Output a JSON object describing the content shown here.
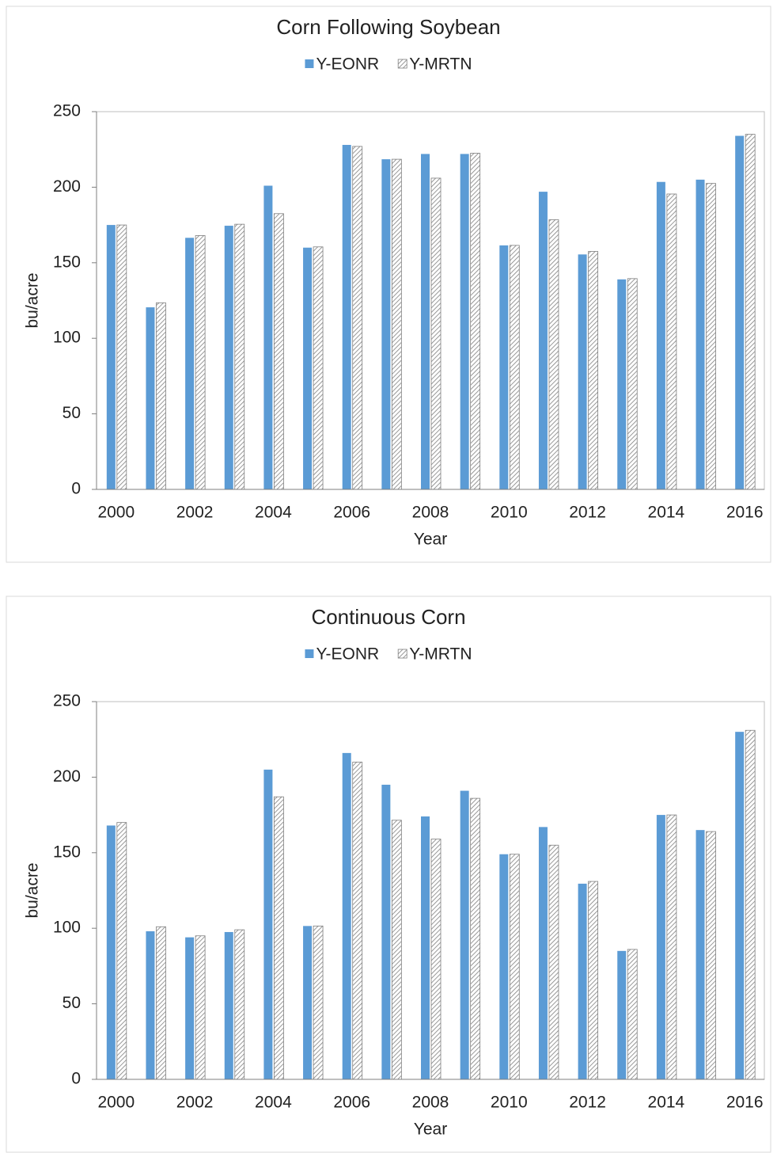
{
  "chart_data": [
    {
      "type": "bar",
      "title": "Corn Following Soybean",
      "x_label": "Year",
      "y_label": "bu/acre",
      "legend": "top",
      "categories": [
        "2000",
        null,
        "2002",
        null,
        "2004",
        null,
        "2006",
        null,
        "2008",
        null,
        "2010",
        null,
        "2012",
        null,
        "2014",
        null,
        "2016"
      ],
      "series": [
        {
          "name": "Y-EONR",
          "color": "#5b9bd5",
          "values": [
            175,
            120.5,
            166.5,
            174.5,
            201,
            160,
            228,
            218.5,
            222,
            222,
            161.5,
            197,
            155.5,
            139,
            203.5,
            205,
            234
          ]
        },
        {
          "name": "Y-MRTN",
          "color": "#7f7f7f",
          "pattern": "hatch",
          "values": [
            175,
            123.5,
            168,
            175.5,
            182.5,
            160.5,
            227,
            218.5,
            206,
            222.5,
            161.5,
            178.5,
            157.5,
            139.5,
            195.5,
            202.5,
            235
          ]
        }
      ],
      "ylim": [
        0,
        250
      ],
      "yticks": [
        0,
        50,
        100,
        150,
        200,
        250
      ]
    },
    {
      "type": "bar",
      "title": "Continuous Corn",
      "x_label": "Year",
      "y_label": "bu/acre",
      "legend": "top",
      "categories": [
        "2000",
        null,
        "2002",
        null,
        "2004",
        null,
        "2006",
        null,
        "2008",
        null,
        "2010",
        null,
        "2012",
        null,
        "2014",
        null,
        "2016"
      ],
      "series": [
        {
          "name": "Y-EONR",
          "color": "#5b9bd5",
          "values": [
            168,
            98,
            94,
            97.5,
            205,
            101.5,
            216,
            195,
            174,
            191,
            149,
            167,
            129.5,
            85,
            175,
            165,
            230
          ]
        },
        {
          "name": "Y-MRTN",
          "color": "#7f7f7f",
          "pattern": "hatch",
          "values": [
            170,
            101,
            95,
            99,
            187,
            101.5,
            210,
            171.5,
            159,
            186,
            149,
            155,
            131,
            86,
            175,
            164,
            231
          ]
        }
      ],
      "ylim": [
        0,
        250
      ],
      "yticks": [
        0,
        50,
        100,
        150,
        200,
        250
      ]
    }
  ]
}
